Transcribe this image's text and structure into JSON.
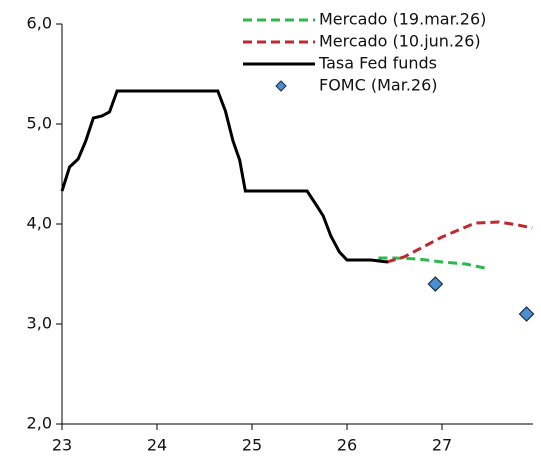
{
  "chart_data": {
    "type": "line",
    "xlim": [
      23,
      28
    ],
    "xticks": [
      23,
      24,
      25,
      26,
      27
    ],
    "ylim": [
      2,
      6
    ],
    "yticks": [
      {
        "value": 2,
        "label": "2,0"
      },
      {
        "value": 3,
        "label": "3,0"
      },
      {
        "value": 4,
        "label": "4,0"
      },
      {
        "value": 5,
        "label": "5,0"
      },
      {
        "value": 6,
        "label": "6,0"
      }
    ],
    "legend": "top-right",
    "series": [
      {
        "name": "Mercado (19.mar.26)",
        "color": "#2db84d",
        "dashed": true,
        "x": [
          26.33,
          26.5,
          26.75,
          27.0,
          27.25,
          27.45
        ],
        "values": [
          3.66,
          3.66,
          3.65,
          3.62,
          3.6,
          3.56
        ]
      },
      {
        "name": "Mercado (10.jun.26)",
        "color": "#c0282d",
        "dashed": true,
        "x": [
          26.42,
          26.6,
          26.8,
          27.0,
          27.2,
          27.35,
          27.6,
          27.8,
          27.95
        ],
        "values": [
          3.62,
          3.67,
          3.77,
          3.87,
          3.95,
          4.01,
          4.02,
          3.99,
          3.96
        ]
      },
      {
        "name": "Tasa Fed funds",
        "color": "#000000",
        "x": [
          23.0,
          23.08,
          23.17,
          23.25,
          23.33,
          23.42,
          23.5,
          23.58,
          24.64,
          24.72,
          24.8,
          24.87,
          24.93,
          25.58,
          25.67,
          25.75,
          25.83,
          25.92,
          26.0,
          26.25,
          26.43
        ],
        "values": [
          4.33,
          4.57,
          4.65,
          4.83,
          5.06,
          5.08,
          5.12,
          5.33,
          5.33,
          5.13,
          4.83,
          4.64,
          4.33,
          4.33,
          4.2,
          4.08,
          3.88,
          3.72,
          3.64,
          3.64,
          3.62
        ]
      },
      {
        "name": "FOMC (Mar.26)",
        "color": "#4a8fd0",
        "marker": "diamond",
        "x": [
          26.93,
          27.89
        ],
        "values": [
          3.4,
          3.1
        ]
      }
    ]
  }
}
